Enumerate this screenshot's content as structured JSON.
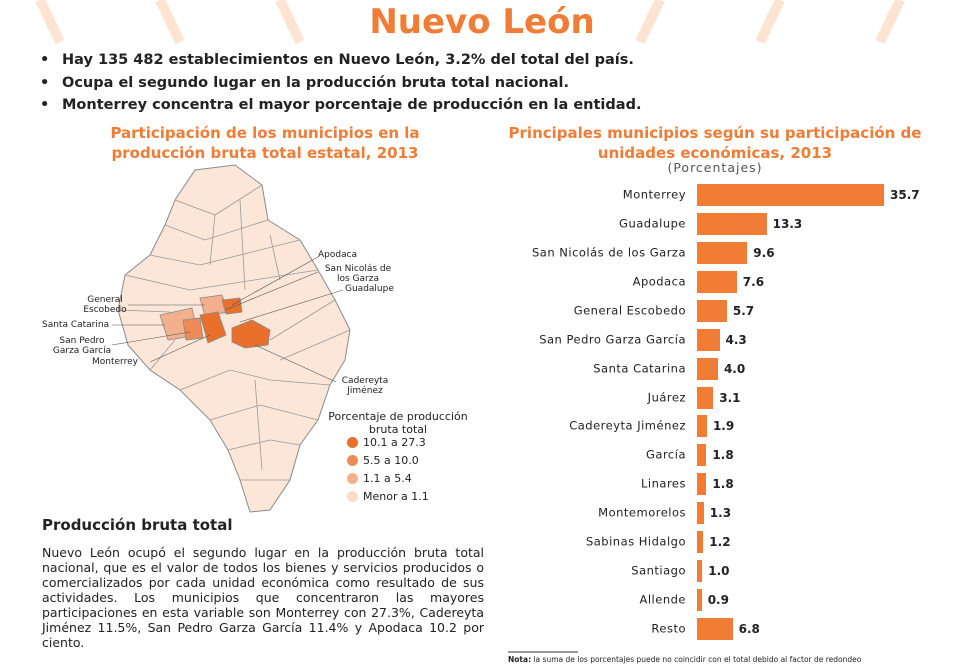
{
  "title": "Nuevo León",
  "bullets": [
    "Hay 135 482 establecimientos en Nuevo León, 3.2% del total del país.",
    "Ocupa el segundo lugar en la producción bruta total nacional.",
    "Monterrey concentra el mayor porcentaje de producción en la entidad."
  ],
  "map": {
    "title": "Participación de los municipios en la producción bruta total estatal, 2013",
    "labels": [
      "Apodaca",
      "San Nicolás de los Garza",
      "Guadalupe",
      "General Escobedo",
      "Santa Catarina",
      "San Pedro Garza García",
      "Monterrey",
      "Cadereyta Jiménez"
    ],
    "legend": {
      "title": "Porcentaje de producción bruta total",
      "items": [
        {
          "label": "10.1 a 27.3",
          "color": "#e8702a"
        },
        {
          "label": "5.5 a 10.0",
          "color": "#ee8a56"
        },
        {
          "label": "1.1 a 5.4",
          "color": "#f4b08c"
        },
        {
          "label": "Menor a 1.1",
          "color": "#fadccb"
        }
      ]
    }
  },
  "section": {
    "heading": "Producción bruta total",
    "text": "Nuevo León ocupó el segundo lugar en la producción bruta total nacional, que es el valor de todos los bienes y servicios producidos o comercializados por cada unidad económica como resultado de sus actividades. Los municipios que concentraron las mayores participaciones en esta variable son Monterrey con 27.3%, Cadereyta Jiménez 11.5%, San Pedro Garza García 11.4% y Apodaca 10.2 por ciento."
  },
  "chart_data": {
    "type": "bar",
    "orientation": "horizontal",
    "title": "Principales municipios según su participación de unidades económicas, 2013",
    "subtitle": "(Porcentajes)",
    "categories": [
      "Monterrey",
      "Guadalupe",
      "San Nicolás de los Garza",
      "Apodaca",
      "General Escobedo",
      "San Pedro Garza García",
      "Santa Catarina",
      "Juárez",
      "Cadereyta Jiménez",
      "García",
      "Linares",
      "Montemorelos",
      "Sabinas Hidalgo",
      "Santiago",
      "Allende",
      "Resto"
    ],
    "values": [
      35.7,
      13.3,
      9.6,
      7.6,
      5.7,
      4.3,
      4.0,
      3.1,
      1.9,
      1.8,
      1.8,
      1.3,
      1.2,
      1.0,
      0.9,
      6.8
    ],
    "value_labels": [
      "35.7",
      "13.3",
      "9.6",
      "7.6",
      "5.7",
      "4.3",
      "4.0",
      "3.1",
      "1.9",
      "1.8",
      "1.8",
      "1.3",
      "1.2",
      "1.0",
      "0.9",
      "6.8"
    ],
    "color": "#f07c35"
  },
  "note": {
    "label": "Nota:",
    "text": "la suma de los porcentajes puede no coincidir con el total debido al factor de redondeo"
  }
}
